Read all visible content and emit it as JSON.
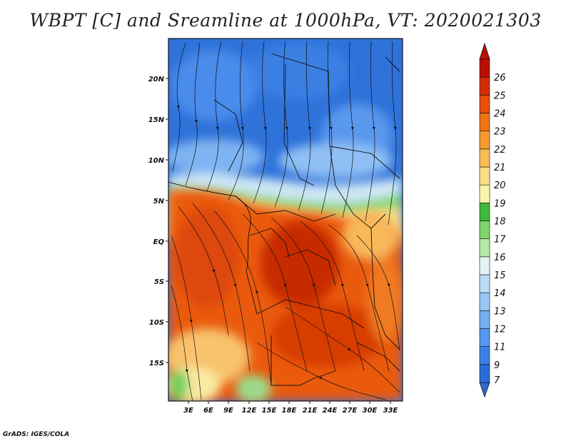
{
  "title": "WBPT [C] and Sreamline at 1000hPa, VT: 2020021303",
  "map": {
    "lat_ticks": [
      "20N",
      "15N",
      "10N",
      "5N",
      "EQ",
      "5S",
      "10S",
      "15S"
    ],
    "lon_ticks": [
      "3E",
      "6E",
      "9E",
      "12E",
      "15E",
      "18E",
      "21E",
      "24E",
      "27E",
      "30E",
      "33E"
    ]
  },
  "colorbar": {
    "labels": [
      "7",
      "9",
      "11",
      "12",
      "13",
      "14",
      "15",
      "16",
      "17",
      "18",
      "19",
      "20",
      "21",
      "22",
      "23",
      "24",
      "25",
      "26"
    ],
    "colors": [
      "#2b6bd6",
      "#3c80e4",
      "#5698ee",
      "#74adf2",
      "#98c6f6",
      "#bcdcf8",
      "#e2f3f3",
      "#b4e8a6",
      "#7ed36c",
      "#40b83c",
      "#fbf3aa",
      "#f8df85",
      "#f7bd56",
      "#f59a32",
      "#f07318",
      "#e64f0c",
      "#d22d05",
      "#b80f02"
    ]
  },
  "credit": "GrADS: IGES/COLA"
}
